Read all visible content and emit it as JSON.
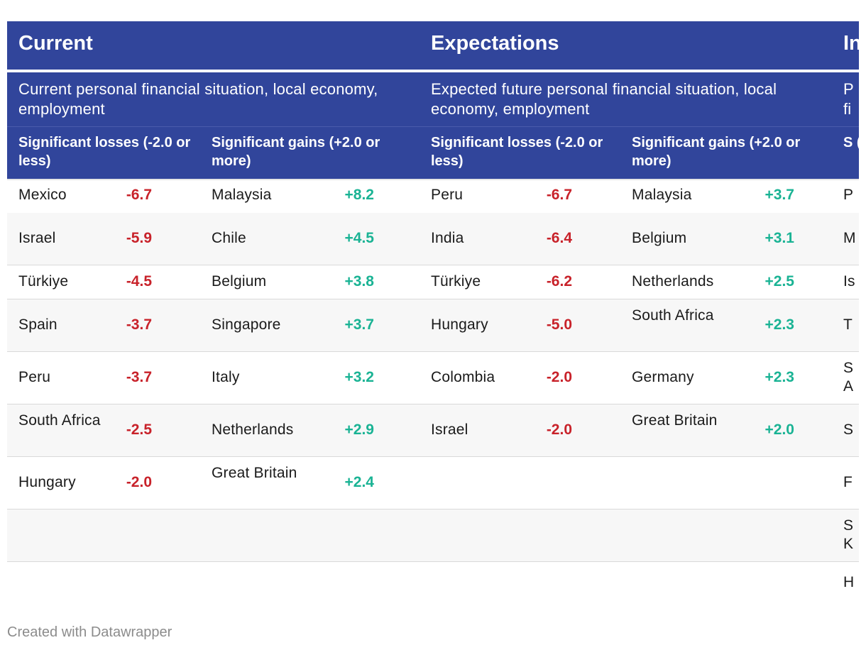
{
  "sections": [
    {
      "title": "Current",
      "subtitle": "Current personal financial situation, local economy, employment",
      "loss_header": "Significant losses (-2.0 or less)",
      "gain_header": "Significant gains (+2.0 or more)",
      "losses": [
        {
          "country": "Mexico",
          "value": "-6.7"
        },
        {
          "country": "Israel",
          "value": "-5.9"
        },
        {
          "country": "Türkiye",
          "value": "-4.5"
        },
        {
          "country": "Spain",
          "value": "-3.7"
        },
        {
          "country": "Peru",
          "value": "-3.7"
        },
        {
          "country": "South Africa",
          "value": "-2.5"
        },
        {
          "country": "Hungary",
          "value": "-2.0"
        }
      ],
      "gains": [
        {
          "country": "Malaysia",
          "value": "+8.2"
        },
        {
          "country": "Chile",
          "value": "+4.5"
        },
        {
          "country": "Belgium",
          "value": "+3.8"
        },
        {
          "country": "Singapore",
          "value": "+3.7"
        },
        {
          "country": "Italy",
          "value": "+3.2"
        },
        {
          "country": "Netherlands",
          "value": "+2.9"
        },
        {
          "country": "Great Britain",
          "value": "+2.4"
        }
      ]
    },
    {
      "title": "Expectations",
      "subtitle": "Expected future personal financial situation, local economy, employment",
      "loss_header": "Significant losses (-2.0 or less)",
      "gain_header": "Significant gains (+2.0 or more)",
      "losses": [
        {
          "country": "Peru",
          "value": "-6.7"
        },
        {
          "country": "India",
          "value": "-6.4"
        },
        {
          "country": "Türkiye",
          "value": "-6.2"
        },
        {
          "country": "Hungary",
          "value": "-5.0"
        },
        {
          "country": "Colombia",
          "value": "-2.0"
        },
        {
          "country": "Israel",
          "value": "-2.0"
        }
      ],
      "gains": [
        {
          "country": "Malaysia",
          "value": "+3.7"
        },
        {
          "country": "Belgium",
          "value": "+3.1"
        },
        {
          "country": "Netherlands",
          "value": "+2.5"
        },
        {
          "country": "South Africa",
          "value": "+2.3"
        },
        {
          "country": "Germany",
          "value": "+2.3"
        },
        {
          "country": "Great Britain",
          "value": "+2.0"
        }
      ]
    },
    {
      "title": "In",
      "subtitle": "P fi",
      "loss_header": "S (-",
      "gain_header": "",
      "losses": [
        {
          "country": "P",
          "value": ""
        },
        {
          "country": "M",
          "value": ""
        },
        {
          "country": "Is",
          "value": ""
        },
        {
          "country": "T",
          "value": ""
        },
        {
          "country": "S A",
          "value": ""
        },
        {
          "country": "S",
          "value": ""
        },
        {
          "country": "F",
          "value": ""
        },
        {
          "country": "S K",
          "value": ""
        },
        {
          "country": "H",
          "value": ""
        }
      ],
      "gains": []
    }
  ],
  "footer": {
    "credit": "Created with Datawrapper"
  },
  "colors": {
    "header_bg": "#31459b",
    "negative": "#c8222a",
    "positive": "#1ab394",
    "alt_row": "#f7f7f7"
  }
}
